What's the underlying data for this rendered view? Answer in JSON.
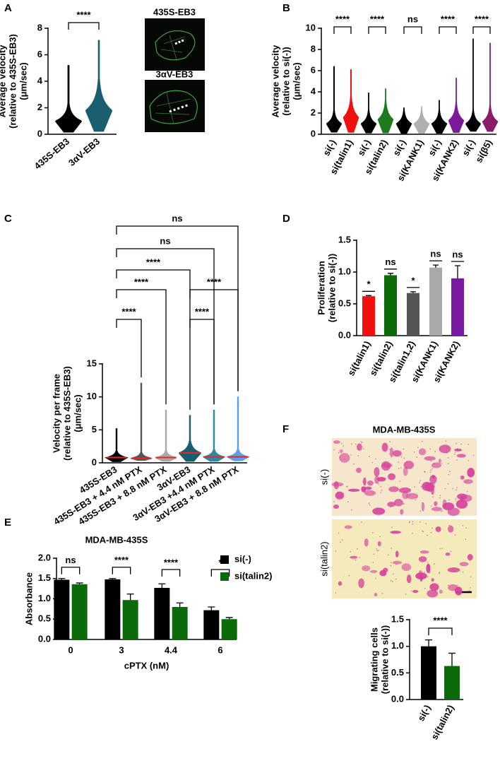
{
  "chart_data": [
    {
      "panel": "A",
      "type": "violin",
      "ylabel": [
        "Average velocity",
        "(relative to 435S-EB3)",
        "(μm/sec)"
      ],
      "categories": [
        "435S-EB3",
        "3αV-EB3"
      ],
      "colors": [
        "#000000",
        "#1b5e70"
      ],
      "max": [
        5.2,
        7.1
      ],
      "median": [
        1.0,
        1.8
      ],
      "ylim": [
        0,
        8
      ],
      "yticks": [
        0,
        2,
        4,
        6,
        8
      ],
      "significance": [
        {
          "pair": [
            0,
            1
          ],
          "label": "****"
        }
      ],
      "images": [
        "435S-EB3",
        "3αV-EB3"
      ]
    },
    {
      "panel": "B",
      "type": "violin",
      "ylabel": [
        "Average velocity",
        "(relative to si(-))",
        "(μm/sec)"
      ],
      "categories": [
        "si(-)",
        "si(talin1)",
        "si(-)",
        "si(talin2)",
        "si(-)",
        "si(KANK1)",
        "si(-)",
        "si(KANK2)",
        "si(-)",
        "si(β5)"
      ],
      "colors": [
        "#000000",
        "#f01010",
        "#000000",
        "#1e7a1e",
        "#000000",
        "#b0b0b0",
        "#000000",
        "#7a1a9a",
        "#000000",
        "#8a1a6a"
      ],
      "max": [
        6.4,
        6.1,
        3.9,
        4.3,
        2.5,
        2.6,
        3.2,
        5.3,
        9.0,
        8.6
      ],
      "median": [
        1.0,
        1.6,
        1.0,
        1.4,
        1.0,
        1.0,
        1.0,
        1.3,
        1.0,
        1.2
      ],
      "ylim": [
        0,
        10
      ],
      "yticks": [
        0,
        2,
        4,
        6,
        8,
        10
      ],
      "significance": [
        {
          "pair": [
            0,
            1
          ],
          "label": "****"
        },
        {
          "pair": [
            2,
            3
          ],
          "label": "****"
        },
        {
          "pair": [
            4,
            5
          ],
          "label": "ns"
        },
        {
          "pair": [
            6,
            7
          ],
          "label": "****"
        },
        {
          "pair": [
            8,
            9
          ],
          "label": "****"
        }
      ]
    },
    {
      "panel": "C",
      "type": "violin",
      "ylabel": [
        "Velocity per frame",
        "(relative to 435S-EB3)",
        "(μm/sec)"
      ],
      "categories": [
        "435S-EB3",
        "435S-EB3 + 4.4 nM PTX",
        "435S-EB3 + 8.8 nM PTX",
        "3αV-EB3",
        "3αV-EB3 +4.4 nM PTX",
        "3αV-EB3 + 8.8 nM PTX"
      ],
      "colors": [
        "#000000",
        "#555555",
        "#a8a8a8",
        "#1b5e70",
        "#2a8aa0",
        "#5aa0e8"
      ],
      "max": [
        5.2,
        12.1,
        8.0,
        7.2,
        8.0,
        10.0
      ],
      "median": [
        0.8,
        0.7,
        0.8,
        1.5,
        0.9,
        0.9
      ],
      "median_color": "#e8262b",
      "ylim": [
        0,
        15
      ],
      "yticks": [
        0,
        5,
        10,
        15
      ],
      "significance": [
        {
          "pair": [
            0,
            5
          ],
          "label": "ns"
        },
        {
          "pair": [
            0,
            4
          ],
          "label": "ns"
        },
        {
          "pair": [
            0,
            3
          ],
          "label": "****"
        },
        {
          "pair": [
            0,
            2
          ],
          "label": "****"
        },
        {
          "pair": [
            3,
            5
          ],
          "label": "****"
        },
        {
          "pair": [
            0,
            1
          ],
          "label": "****"
        },
        {
          "pair": [
            3,
            4
          ],
          "label": "****"
        }
      ]
    },
    {
      "panel": "D",
      "type": "bar",
      "ylabel": [
        "Proliferation",
        "(relative to si(-))"
      ],
      "categories": [
        "si(talin1)",
        "si(talin2)",
        "si(talin1,2)",
        "si(KANK1)",
        "si(KANK2)"
      ],
      "colors": [
        "#f01010",
        "#0b6b0b",
        "#555555",
        "#a8a8a8",
        "#7a1aa0"
      ],
      "values": [
        0.62,
        0.95,
        0.67,
        1.07,
        0.9
      ],
      "errors": [
        0.01,
        0.03,
        0.02,
        0.04,
        0.2
      ],
      "bar_labels": [
        "*",
        "ns",
        "*",
        "ns",
        "ns"
      ],
      "ylim": [
        0,
        1.5
      ],
      "yticks": [
        {
          "value": 0,
          "label": "0.0"
        },
        {
          "value": 0.5,
          "label": "0.5"
        },
        {
          "value": 1,
          "label": "1.0"
        },
        {
          "value": 1.5,
          "label": "1.5"
        }
      ]
    },
    {
      "panel": "E",
      "type": "grouped_bar",
      "title": "MDA-MB-435S",
      "ylabel": [
        "Absorbance"
      ],
      "xlabel": "cPTX (nM)",
      "categories": [
        "0",
        "3",
        "4.4",
        "6"
      ],
      "series": [
        {
          "name": "si(-)",
          "color": "#000000",
          "values": [
            1.47,
            1.48,
            1.27,
            0.72
          ],
          "errors": [
            0.03,
            0.02,
            0.1,
            0.08
          ]
        },
        {
          "name": "si(talin2)",
          "color": "#0b6b0b",
          "values": [
            1.36,
            0.97,
            0.8,
            0.5
          ],
          "errors": [
            0.03,
            0.15,
            0.1,
            0.04
          ]
        }
      ],
      "bar_labels": [
        "ns",
        "****",
        "****",
        "*"
      ],
      "ylim": [
        0,
        2.0
      ],
      "yticks": [
        {
          "value": 0,
          "label": "0.0"
        },
        {
          "value": 0.5,
          "label": "0.5"
        },
        {
          "value": 1,
          "label": "1.0"
        },
        {
          "value": 1.5,
          "label": "1.5"
        },
        {
          "value": 2,
          "label": "2.0"
        }
      ]
    },
    {
      "panel": "F",
      "type": "bar",
      "image_title": "MDA-MB-435S",
      "image_labels": [
        "si(-)",
        "si(talin2)"
      ],
      "ylabel": [
        "Migrating cells",
        "(relative to si(-))"
      ],
      "categories": [
        "si(-)",
        "si(talin2)"
      ],
      "colors": [
        "#000000",
        "#0b6b0b"
      ],
      "values": [
        1.0,
        0.63
      ],
      "errors": [
        0.12,
        0.24
      ],
      "significance": [
        {
          "pair": [
            0,
            1
          ],
          "label": "****"
        }
      ],
      "ylim": [
        0,
        1.5
      ],
      "yticks": [
        {
          "value": 0,
          "label": "0.0"
        },
        {
          "value": 0.5,
          "label": "0.5"
        },
        {
          "value": 1,
          "label": "1.0"
        },
        {
          "value": 1.5,
          "label": "1.5"
        }
      ]
    }
  ]
}
